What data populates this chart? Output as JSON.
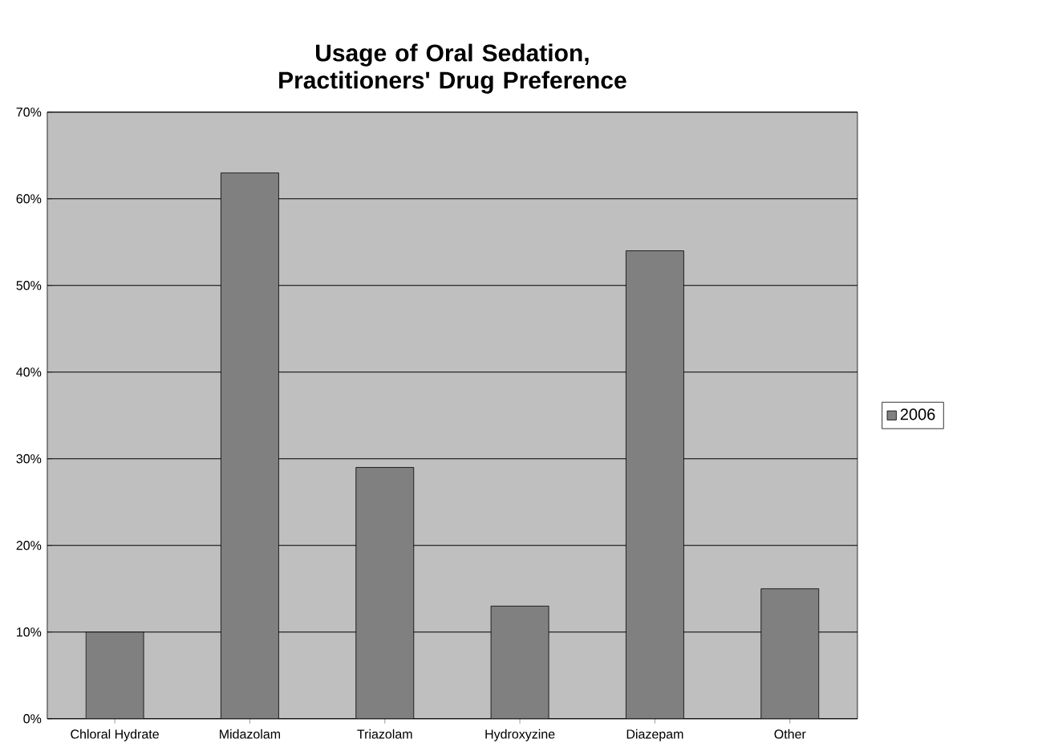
{
  "chart_data": {
    "type": "bar",
    "title": "Usage of Oral Sedation, Practitioners' Drug Preference",
    "categories": [
      "Chloral Hydrate",
      "Midazolam",
      "Triazolam",
      "Hydroxyzine",
      "Diazepam",
      "Other"
    ],
    "series": [
      {
        "name": "2006",
        "color": "#808080",
        "values": [
          10,
          63,
          29,
          13,
          54,
          15
        ]
      }
    ],
    "ylim": [
      0,
      70
    ],
    "yticks": [
      {
        "value": 0,
        "label": "0%"
      },
      {
        "value": 10,
        "label": "10%"
      },
      {
        "value": 20,
        "label": "20%"
      },
      {
        "value": 30,
        "label": "30%"
      },
      {
        "value": 40,
        "label": "40%"
      },
      {
        "value": 50,
        "label": "50%"
      },
      {
        "value": 60,
        "label": "60%"
      },
      {
        "value": 70,
        "label": "70%"
      }
    ],
    "grid": "y",
    "legend": "right"
  }
}
